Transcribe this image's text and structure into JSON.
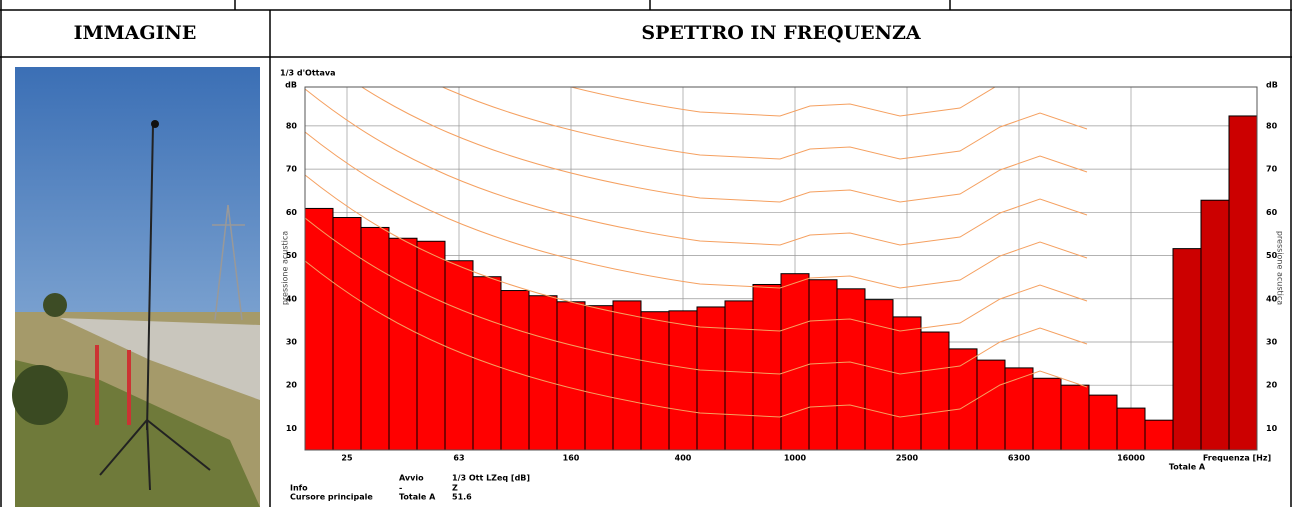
{
  "header": {
    "col1": "IMMAGINE",
    "col2": "SPETTRO IN FREQUENZA"
  },
  "chart_data": {
    "type": "bar",
    "subtitle": "1/3 d'Ottava",
    "y_unit": "dB",
    "ylabel": "pressione acustica",
    "xlabel": "Frequenza [Hz]",
    "categories": [
      null,
      "25",
      null,
      null,
      null,
      "63",
      null,
      null,
      null,
      "160",
      null,
      null,
      null,
      "400",
      null,
      null,
      null,
      "1000",
      null,
      null,
      null,
      "2500",
      null,
      null,
      null,
      "6300",
      null,
      null,
      null,
      "16000",
      null,
      "Totale A",
      null,
      null
    ],
    "series": [
      {
        "color": "#ff0000",
        "values": [
          60.9,
          58.8,
          56.5,
          54,
          53.3,
          48.8,
          45.1,
          41.9,
          40.7,
          39.3,
          38.4,
          39.5,
          37,
          37.2,
          38.1,
          39.5,
          43.3,
          45.8,
          44.4,
          42.3,
          39.8,
          35.8,
          32.3,
          28.4,
          25.8,
          24,
          21.6,
          20,
          17.7,
          14.7,
          11.9,
          null,
          null,
          null
        ]
      },
      {
        "color": "#cc0000",
        "values": [
          null,
          null,
          null,
          null,
          null,
          null,
          null,
          null,
          null,
          null,
          null,
          null,
          null,
          null,
          null,
          null,
          null,
          null,
          null,
          null,
          null,
          null,
          null,
          null,
          null,
          null,
          null,
          null,
          null,
          null,
          null,
          51.6,
          62.8,
          82.3
        ]
      }
    ],
    "ylim": [
      5,
      89
    ],
    "yticks": [
      10,
      20,
      30,
      40,
      50,
      60,
      70,
      80
    ],
    "grid": true,
    "info": {
      "labels": [
        "Info",
        "Cursore principale"
      ],
      "columns": [
        {
          "heading": "Avvio",
          "cells": [
            "-",
            "Totale A"
          ]
        },
        {
          "heading": "1/3 Ott LZeq [dB]",
          "cells": [
            "Z",
            "51.6"
          ]
        }
      ]
    }
  }
}
